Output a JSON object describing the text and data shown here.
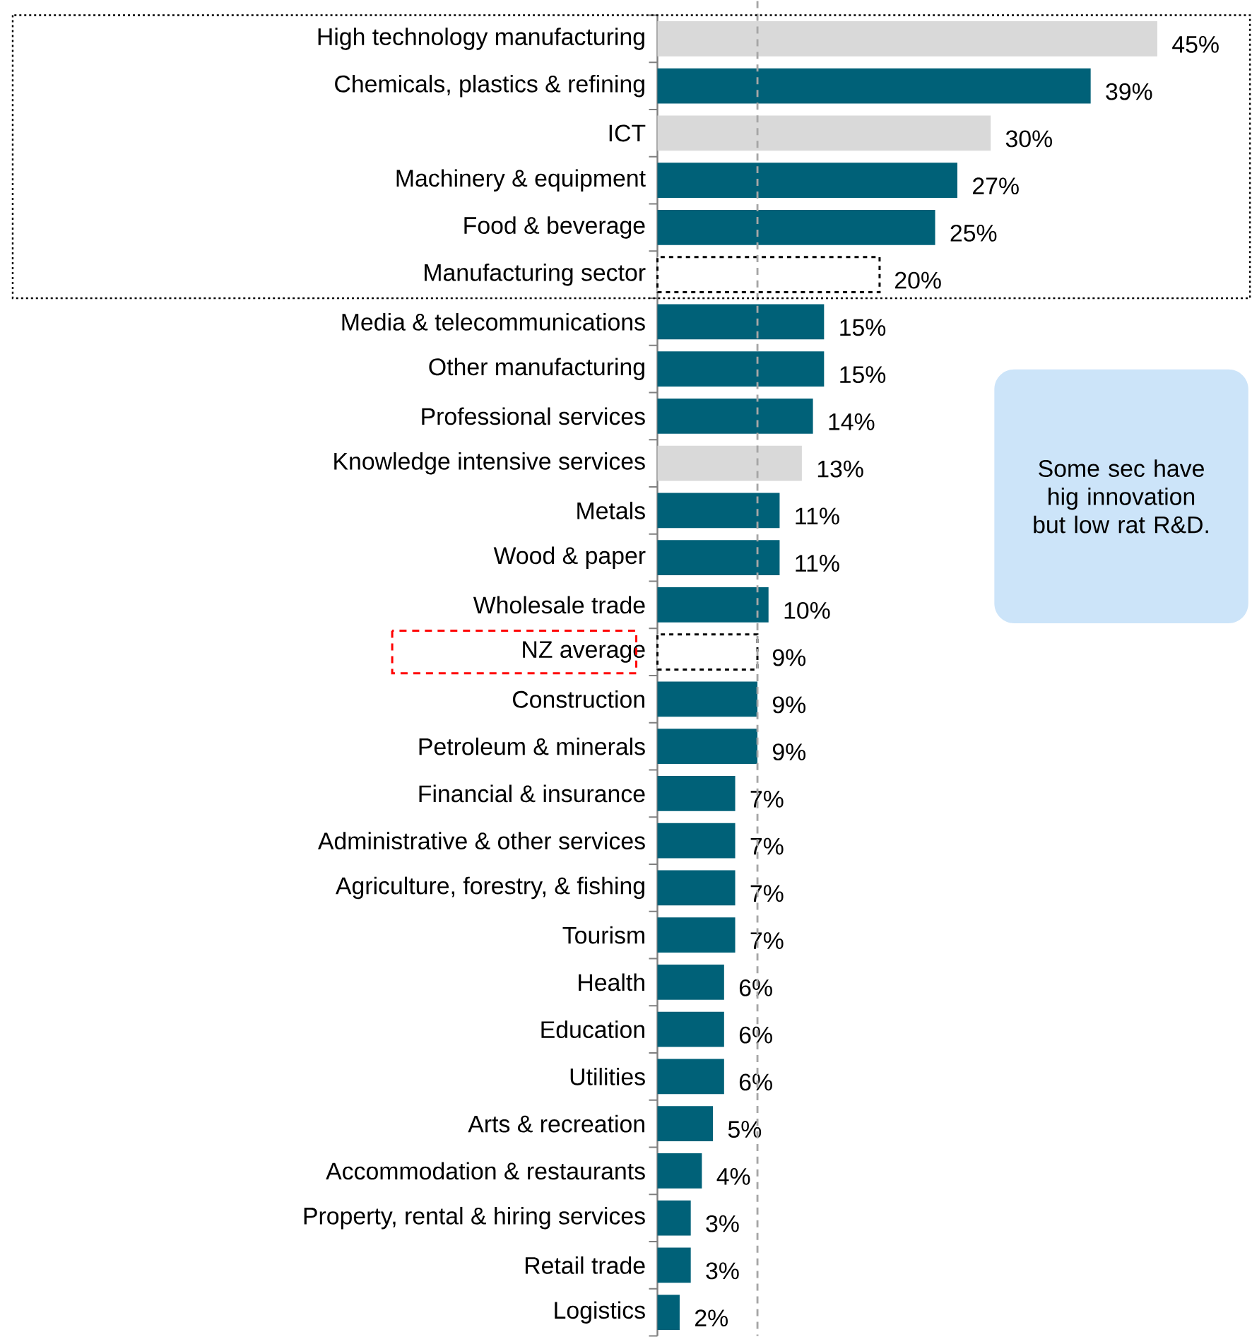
{
  "chart_data": {
    "type": "bar",
    "orientation": "horizontal",
    "categories": [
      "High technology manufacturing",
      "Chemicals, plastics & refining",
      "ICT",
      "Machinery & equipment",
      "Food & beverage",
      "Manufacturing sector",
      "Media & telecommunications",
      "Other manufacturing",
      "Professional services",
      "Knowledge intensive services",
      "Metals",
      "Wood & paper",
      "Wholesale trade",
      "NZ average",
      "Construction",
      "Petroleum & minerals",
      "Financial & insurance",
      "Administrative & other services",
      "Agriculture, forestry, & fishing",
      "Tourism",
      "Health",
      "Education",
      "Utilities",
      "Arts & recreation",
      "Accommodation & restaurants",
      "Property, rental & hiring services",
      "Retail trade",
      "Logistics"
    ],
    "values": [
      45,
      39,
      30,
      27,
      25,
      20,
      15,
      15,
      14,
      13,
      11,
      11,
      10,
      9,
      9,
      9,
      7,
      7,
      7,
      7,
      6,
      6,
      6,
      5,
      4,
      3,
      3,
      2
    ],
    "value_labels": [
      "45%",
      "39%",
      "30%",
      "27%",
      "25%",
      "20%",
      "15%",
      "15%",
      "14%",
      "13%",
      "11%",
      "11%",
      "10%",
      "9%",
      "9%",
      "9%",
      "7%",
      "7%",
      "7%",
      "7%",
      "6%",
      "6%",
      "6%",
      "5%",
      "4%",
      "3%",
      "3%",
      "2%"
    ],
    "colors": [
      "#d9d9d9",
      "#006178",
      "#d9d9d9",
      "#006178",
      "#006178",
      "#ffffff",
      "#006178",
      "#006178",
      "#006178",
      "#d9d9d9",
      "#006178",
      "#006178",
      "#006178",
      "#ffffff",
      "#006178",
      "#006178",
      "#006178",
      "#006178",
      "#006178",
      "#006178",
      "#006178",
      "#006178",
      "#006178",
      "#006178",
      "#006178",
      "#006178",
      "#006178",
      "#006178"
    ],
    "ref_lines": [
      {
        "axis": "x",
        "value": 9,
        "color": "#a6a6a6",
        "line_style": "dashed"
      }
    ],
    "annotations": [
      "Some sec have hig innovation but low rat R&D."
    ]
  }
}
